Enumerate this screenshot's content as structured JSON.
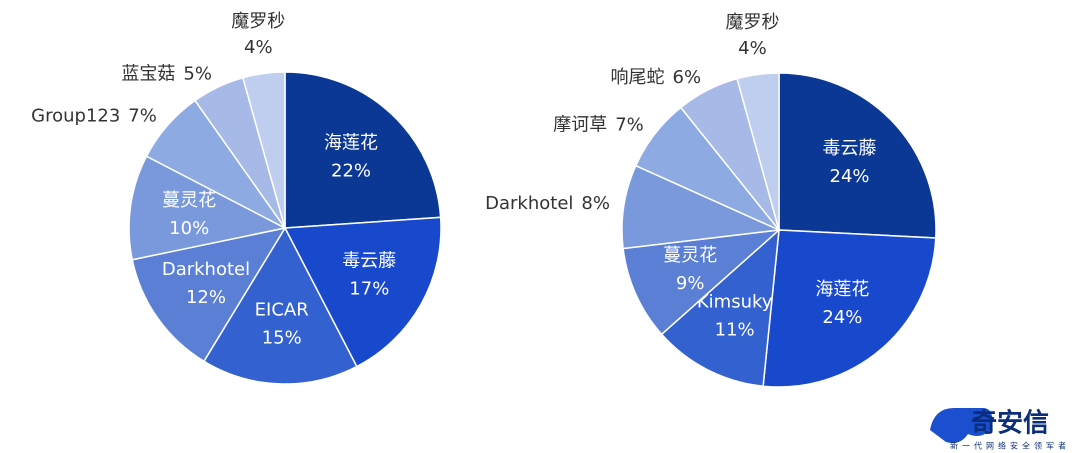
{
  "chart_data": [
    {
      "type": "pie",
      "categories": [
        "海莲花",
        "毒云藤",
        "EICAR",
        "Darkhotel",
        "蔓灵花",
        "Group123",
        "蓝宝菇",
        "魔罗秒"
      ],
      "values": [
        22,
        17,
        15,
        12,
        10,
        7,
        5,
        4
      ],
      "value_labels": [
        "22%",
        "17%",
        "15%",
        "12%",
        "10%",
        "7%",
        "5%",
        "4%"
      ],
      "colors": [
        "#0b3894",
        "#1848cc",
        "#3461d0",
        "#5a7fd5",
        "#7a99dd",
        "#8eaae2",
        "#a6b9e7",
        "#bfcdef"
      ]
    },
    {
      "type": "pie",
      "categories": [
        "毒云藤",
        "海莲花",
        "Kimsuky",
        "蔓灵花",
        "Darkhotel",
        "摩诃草",
        "响尾蛇",
        "魔罗秒"
      ],
      "values": [
        24,
        24,
        11,
        9,
        8,
        7,
        6,
        4
      ],
      "value_labels": [
        "24%",
        "24%",
        "11%",
        "9%",
        "8%",
        "7%",
        "6%",
        "4%"
      ],
      "colors": [
        "#0b3894",
        "#1848cc",
        "#3461d0",
        "#5a7fd5",
        "#7a99dd",
        "#8eaae2",
        "#a6b9e7",
        "#bfcdef"
      ]
    }
  ],
  "logo": {
    "name": "奇安信",
    "tagline": "新一代网络安全领军者"
  }
}
